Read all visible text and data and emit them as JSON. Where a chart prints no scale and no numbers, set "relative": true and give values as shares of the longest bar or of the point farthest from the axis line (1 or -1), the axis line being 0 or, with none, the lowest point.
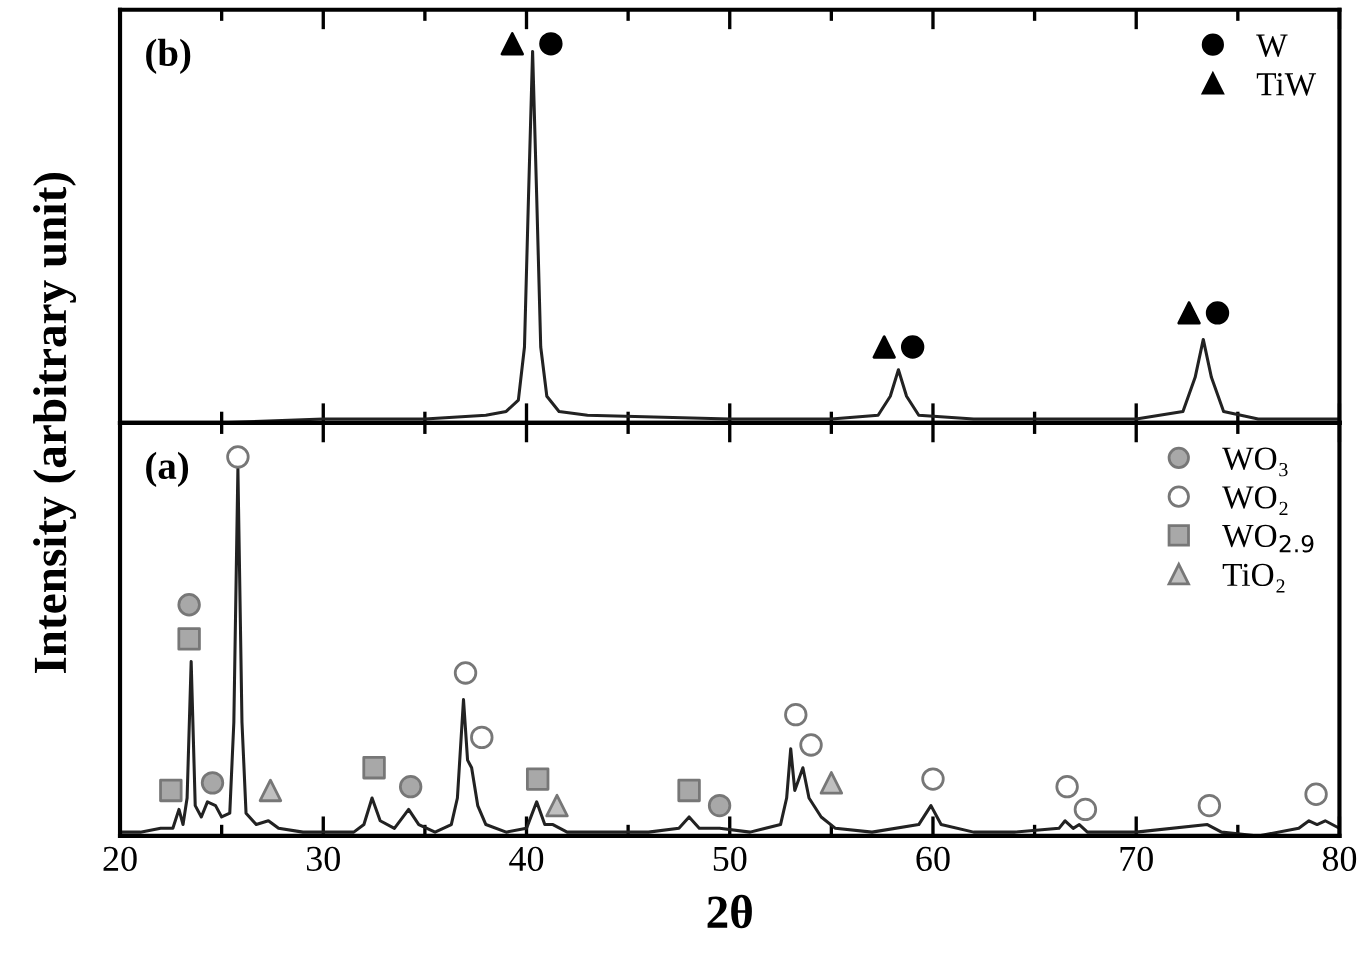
{
  "chart_data": [
    {
      "type": "line",
      "relative": true,
      "ylabel": "Intensity (arbitrary unit)",
      "annotations": [
        "(b)"
      ],
      "xlim": [
        20,
        80
      ],
      "xticks": [
        20,
        {
          "value": 25,
          "label": null
        },
        30,
        {
          "value": 35,
          "label": null
        },
        40,
        {
          "value": 45,
          "label": null
        },
        50,
        {
          "value": 55,
          "label": null
        },
        60,
        {
          "value": 65,
          "label": null
        },
        70,
        {
          "value": 75,
          "label": null
        },
        80
      ],
      "tick_labels": false,
      "legend": "top right",
      "grid": false,
      "series": [
        {
          "color": "#222222",
          "x": [
            20,
            25,
            30,
            35,
            38,
            39,
            39.6,
            39.9,
            40.1,
            40.3,
            40.5,
            40.7,
            41.0,
            41.6,
            43,
            50,
            55,
            57.3,
            57.9,
            58.3,
            58.7,
            59.3,
            62,
            70,
            72.3,
            72.9,
            73.3,
            73.7,
            74.3,
            76,
            80
          ],
          "values": [
            0.0,
            0.0,
            0.01,
            0.01,
            0.02,
            0.03,
            0.06,
            0.2,
            0.6,
            0.98,
            0.6,
            0.2,
            0.07,
            0.03,
            0.02,
            0.01,
            0.01,
            0.02,
            0.07,
            0.14,
            0.07,
            0.02,
            0.01,
            0.01,
            0.03,
            0.12,
            0.22,
            0.12,
            0.03,
            0.01,
            0.01
          ]
        },
        {
          "type": "scatter",
          "name": "W",
          "marker": "circle",
          "color": "#000000",
          "x": [
            41.2,
            59.0,
            74.0
          ],
          "values": [
            1.0,
            0.2,
            0.29
          ]
        },
        {
          "type": "scatter",
          "name": "TiW",
          "marker": "triangle",
          "color": "#000000",
          "x": [
            39.3,
            57.6,
            72.6
          ],
          "values": [
            1.0,
            0.2,
            0.29
          ]
        }
      ]
    },
    {
      "type": "line",
      "relative": true,
      "xlabel": "2θ",
      "annotations": [
        "(a)"
      ],
      "xlim": [
        20,
        80
      ],
      "xticks": [
        20,
        {
          "value": 25,
          "label": null
        },
        30,
        {
          "value": 35,
          "label": null
        },
        40,
        {
          "value": 45,
          "label": null
        },
        50,
        {
          "value": 55,
          "label": null
        },
        60,
        {
          "value": 65,
          "label": null
        },
        70,
        {
          "value": 75,
          "label": null
        },
        80
      ],
      "tick_labels": "x",
      "legend": "top right",
      "grid": false,
      "series": [
        {
          "color": "#222222",
          "x": [
            20,
            21,
            22,
            22.6,
            22.9,
            23.1,
            23.3,
            23.5,
            23.7,
            24.0,
            24.3,
            24.7,
            25.0,
            25.4,
            25.6,
            25.8,
            26.0,
            26.2,
            26.7,
            27.3,
            27.8,
            29,
            30,
            31.5,
            32.0,
            32.4,
            32.8,
            33.5,
            34.2,
            34.7,
            35.5,
            36.3,
            36.6,
            36.9,
            37.1,
            37.3,
            37.6,
            38.0,
            39,
            40.0,
            40.5,
            40.9,
            41.3,
            42,
            44,
            46,
            47.5,
            48.0,
            48.5,
            49.5,
            51,
            52.5,
            52.8,
            53.0,
            53.2,
            53.6,
            53.9,
            54.5,
            55.2,
            57,
            59.3,
            59.9,
            60.4,
            62,
            64,
            66.2,
            66.5,
            66.9,
            67.2,
            67.6,
            70,
            73.5,
            74.2,
            76,
            78,
            78.5,
            78.9,
            79.3,
            80
          ],
          "values": [
            0.01,
            0.01,
            0.02,
            0.02,
            0.07,
            0.03,
            0.1,
            0.46,
            0.08,
            0.05,
            0.09,
            0.08,
            0.05,
            0.06,
            0.3,
            0.97,
            0.3,
            0.06,
            0.03,
            0.04,
            0.02,
            0.01,
            0.01,
            0.01,
            0.03,
            0.1,
            0.04,
            0.02,
            0.07,
            0.03,
            0.01,
            0.03,
            0.1,
            0.36,
            0.2,
            0.18,
            0.08,
            0.03,
            0.01,
            0.02,
            0.09,
            0.03,
            0.03,
            0.01,
            0.01,
            0.01,
            0.02,
            0.05,
            0.02,
            0.02,
            0.01,
            0.03,
            0.1,
            0.23,
            0.12,
            0.18,
            0.1,
            0.05,
            0.02,
            0.01,
            0.03,
            0.08,
            0.03,
            0.01,
            0.01,
            0.02,
            0.04,
            0.02,
            0.03,
            0.01,
            0.01,
            0.03,
            0.01,
            0.0,
            0.02,
            0.04,
            0.03,
            0.04,
            0.02
          ]
        },
        {
          "type": "scatter",
          "name": "WO₃",
          "marker": "circle",
          "color": "#a8a8a8",
          "x": [
            23.4,
            24.55,
            34.3,
            49.5
          ],
          "values": [
            0.61,
            0.14,
            0.13,
            0.08
          ]
        },
        {
          "type": "scatter",
          "name": "WO₂",
          "marker": "circle",
          "color": "#ffffff",
          "x": [
            25.8,
            37.0,
            37.8,
            53.25,
            54.0,
            60.0,
            66.6,
            67.5,
            73.6,
            78.85
          ],
          "values": [
            1.0,
            0.43,
            0.26,
            0.32,
            0.24,
            0.15,
            0.13,
            0.07,
            0.08,
            0.11
          ]
        },
        {
          "type": "scatter",
          "name": "WO$_{2.9}$",
          "marker": "square",
          "color": "#a8a8a8",
          "x": [
            22.5,
            23.4,
            32.5,
            40.55,
            48.0
          ],
          "values": [
            0.12,
            0.52,
            0.18,
            0.15,
            0.12
          ]
        },
        {
          "type": "scatter",
          "name": "TiO₂",
          "marker": "triangle",
          "color": "#c0c0c0",
          "x": [
            27.4,
            41.5,
            55.0
          ],
          "values": [
            0.12,
            0.08,
            0.14
          ]
        }
      ]
    }
  ]
}
